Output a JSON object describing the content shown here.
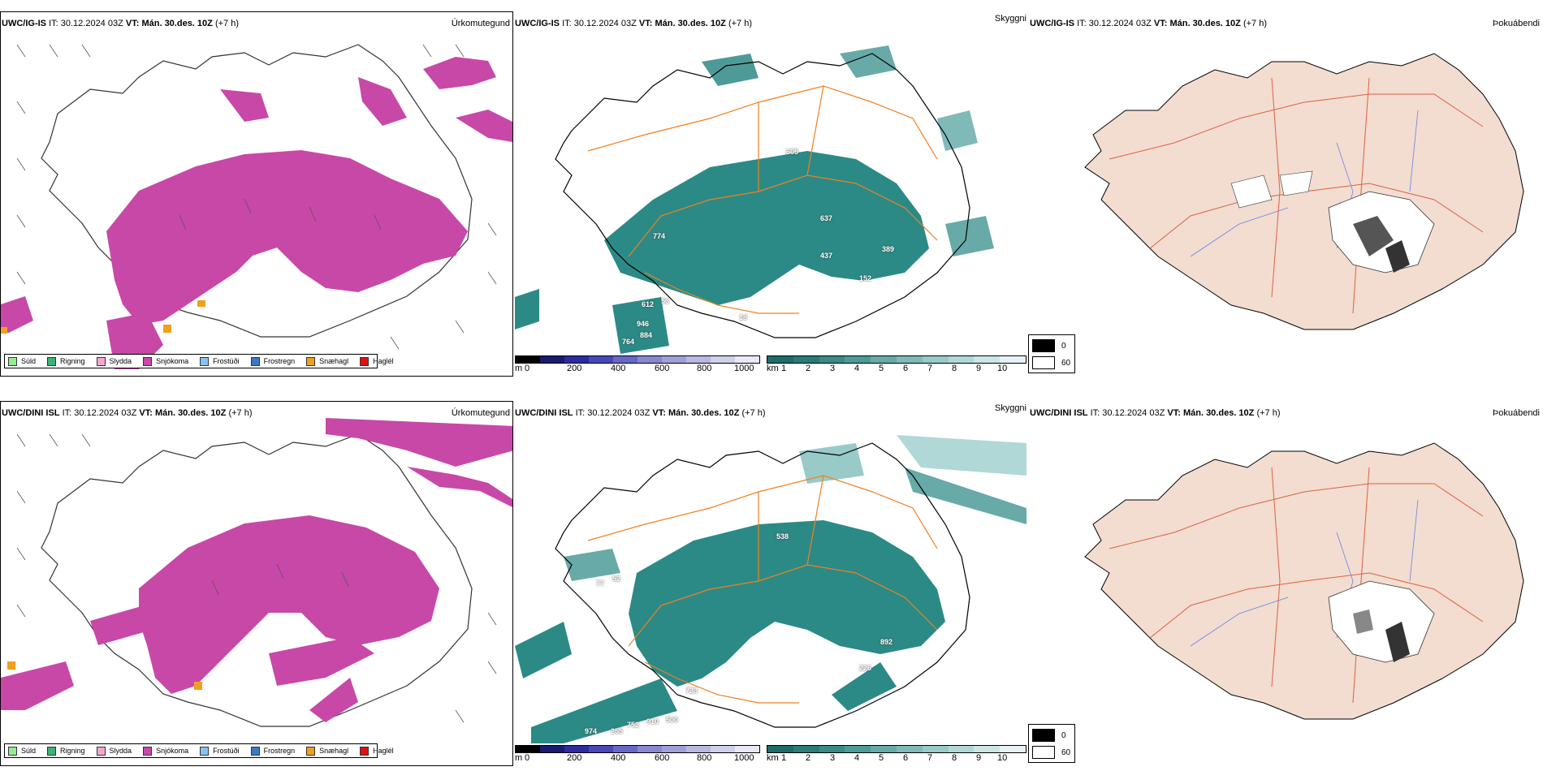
{
  "rows": [
    {
      "id": "top",
      "model": "UWC/IG-IS",
      "it_label": "IT:",
      "it_value": "30.12.2024 03Z",
      "vt_label": "VT:",
      "vt_value": "Mán. 30.des. 10Z",
      "lead": "(+7 h)",
      "ceiling_labels": [
        "605",
        "637",
        "774",
        "437",
        "389",
        "152",
        "612",
        "56",
        "946",
        "764",
        "884",
        "18"
      ]
    },
    {
      "id": "bottom",
      "model": "UWC/DINI ISL",
      "it_label": "IT:",
      "it_value": "30.12.2024 03Z",
      "vt_label": "VT:",
      "vt_value": "Mán. 30.des. 10Z",
      "lead": "(+7 h)",
      "ceiling_labels": [
        "538",
        "77",
        "52",
        "892",
        "226",
        "723",
        "974",
        "255",
        "752",
        "910",
        "500"
      ]
    }
  ],
  "panel_titles": {
    "precip": "Úrkomutegund",
    "ceiling": "Skyggni",
    "fog": "Þokuábendi"
  },
  "precip_legend": [
    {
      "label": "Súld",
      "color": "#90ee90"
    },
    {
      "label": "Rigning",
      "color": "#3cb371"
    },
    {
      "label": "Slydda",
      "color": "#f4a6d0"
    },
    {
      "label": "Snjókoma",
      "color": "#c848a8"
    },
    {
      "label": "Frostúði",
      "color": "#8cc0f0"
    },
    {
      "label": "Frostregn",
      "color": "#3a78c8"
    },
    {
      "label": "Snæhagl",
      "color": "#f0a020"
    },
    {
      "label": "Haglél",
      "color": "#e01010"
    }
  ],
  "ceiling_bar": {
    "unit": "m",
    "ticks": [
      "0",
      "200",
      "400",
      "600",
      "800",
      "1000"
    ],
    "colors": [
      "#000000",
      "#1a1a70",
      "#2c2ca0",
      "#4848b8",
      "#6868c8",
      "#8888d0",
      "#a0a0d8",
      "#b8b8e0",
      "#d0d0ec",
      "#e8e8f8"
    ]
  },
  "visibility_bar": {
    "unit": "km",
    "ticks": [
      "1",
      "2",
      "3",
      "4",
      "5",
      "6",
      "7",
      "8",
      "9",
      "10"
    ],
    "colors": [
      "#1f6b6b",
      "#2b7b7b",
      "#3a8a88",
      "#4e9a98",
      "#68aaa8",
      "#80bab8",
      "#98cac8",
      "#b0d8d6",
      "#cce6e4",
      "#e6f3f2"
    ]
  },
  "fog_legend": [
    {
      "label": "0",
      "color": "#000000"
    },
    {
      "label": "60",
      "color": "#ffffff"
    }
  ],
  "colors": {
    "snow": "#c848a8",
    "teal": "#2b8a86",
    "land_fog": "#f2ddd0",
    "roads": "#f08020",
    "rivers": "#6a80e8",
    "glacier_gray": "#888888"
  }
}
